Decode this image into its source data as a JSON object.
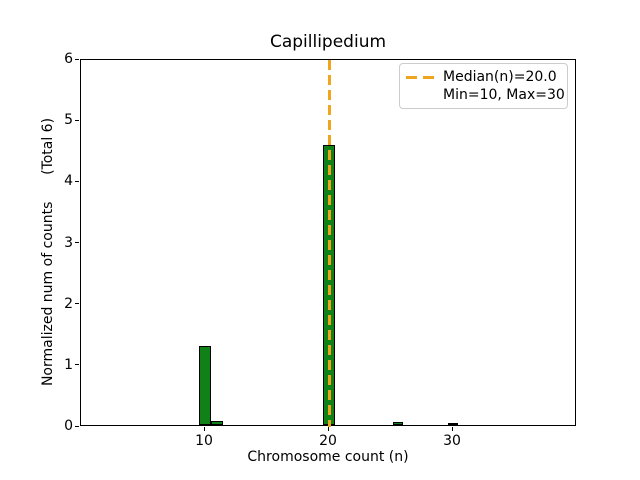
{
  "title": "Capillipedium",
  "chart_data": {
    "type": "bar",
    "title": "Capillipedium",
    "xlabel": "Chromosome count (n)",
    "ylabel": "Normalized num of counts      (Total 6)",
    "xlim": [
      0,
      40
    ],
    "ylim": [
      0,
      6
    ],
    "xticks": [
      10,
      20,
      30
    ],
    "yticks": [
      0,
      1,
      2,
      3,
      4,
      5,
      6
    ],
    "grid": false,
    "bars": [
      {
        "x_center": 10.0,
        "width": 0.97,
        "height": 1.29
      },
      {
        "x_center": 11.0,
        "width": 0.97,
        "height": 0.07
      },
      {
        "x_center": 20.0,
        "width": 0.9,
        "height": 4.57
      },
      {
        "x_center": 25.6,
        "width": 0.8,
        "height": 0.05
      },
      {
        "x_center": 30.0,
        "width": 0.8,
        "height": 0.04
      }
    ],
    "median_line": {
      "x": 20.0,
      "style": "dashed"
    },
    "stats": {
      "median": 20.0,
      "min": 10,
      "max": 30,
      "total_counts": 6
    },
    "legend": {
      "position": "upper right",
      "entries": [
        {
          "marker": "orange-dashed-line",
          "label": "Median(n)=20.0"
        },
        {
          "marker": "none",
          "label": "Min=10, Max=30"
        }
      ]
    },
    "colors": {
      "bar_fill": "#0f8116",
      "bar_edge": "#000000",
      "median_line": "#f0a51f",
      "spine": "#000000",
      "background": "#ffffff"
    }
  }
}
